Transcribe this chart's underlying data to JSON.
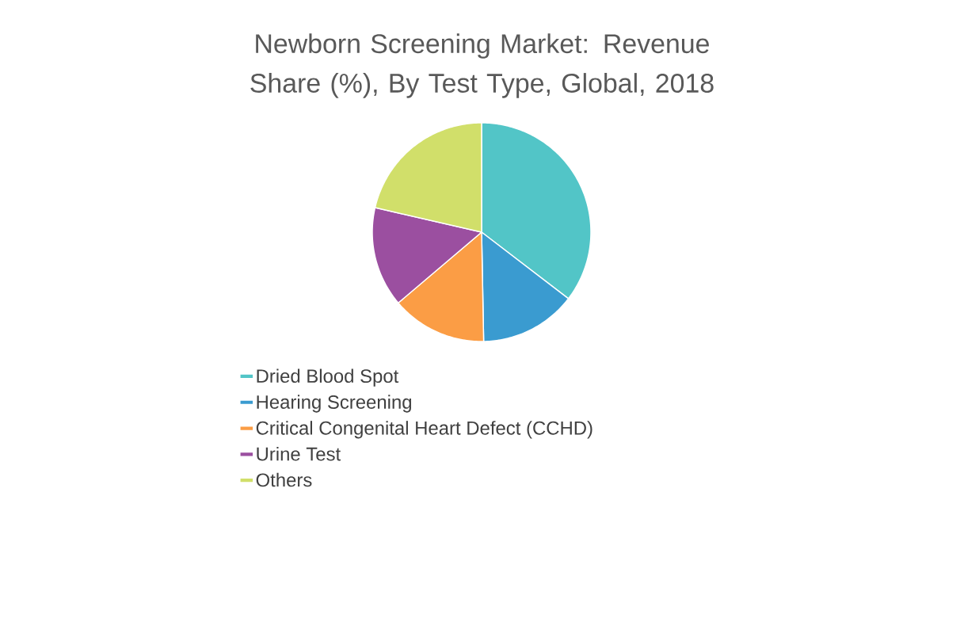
{
  "chart_data": {
    "type": "pie",
    "title": "Newborn Screening Market: Revenue Share (%), By Test Type, Global, 2018",
    "categories": [
      "Dried Blood Spot",
      "Hearing Screening",
      "Critical Congenital Heart Defect (CCHD)",
      "Urine Test",
      "Others"
    ],
    "values": [
      35.4,
      14.3,
      14.1,
      14.8,
      21.4
    ],
    "colors": [
      "#52c5c7",
      "#3a9bd0",
      "#fb9d45",
      "#9b4fa0",
      "#d1df6a"
    ],
    "legend": "bottom"
  }
}
